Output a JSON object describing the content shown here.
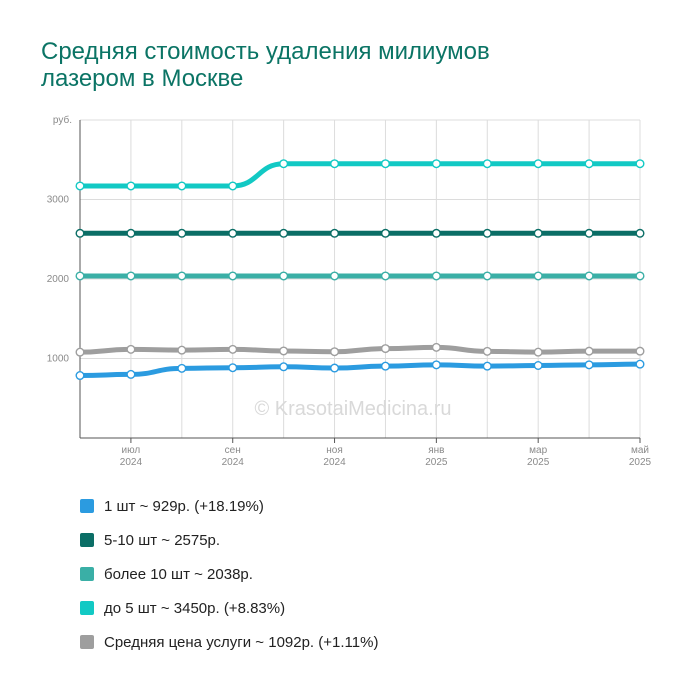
{
  "title": [
    "Средняя стоимость удаления милиумов",
    "лазером в Москве"
  ],
  "watermark": "© KrasotaiMedicina.ru",
  "chart_data": {
    "type": "line",
    "ylabel": "руб.",
    "ylim": [
      0,
      4000
    ],
    "yticks": [
      1000,
      2000,
      3000
    ],
    "x_ticks": [
      {
        "month": "июл",
        "year": "2024"
      },
      {
        "month": "сен",
        "year": "2024"
      },
      {
        "month": "ноя",
        "year": "2024"
      },
      {
        "month": "янв",
        "year": "2025"
      },
      {
        "month": "мар",
        "year": "2025"
      },
      {
        "month": "май",
        "year": "2025"
      }
    ],
    "grid": true,
    "legend_position": "bottom",
    "series": [
      {
        "label": "1 шт ~ 929р. (+18.19%)",
        "color": "#2b9be0",
        "values": [
          786,
          800,
          876,
          884,
          896,
          880,
          904,
          920,
          904,
          912,
          920,
          929
        ]
      },
      {
        "label": "5-10 шт ~ 2575р.",
        "color": "#0b6e66",
        "values": [
          2575,
          2575,
          2575,
          2575,
          2575,
          2575,
          2575,
          2575,
          2575,
          2575,
          2575,
          2575
        ]
      },
      {
        "label": "более 10 шт ~ 2038р.",
        "color": "#3aafa6",
        "values": [
          2038,
          2038,
          2038,
          2038,
          2038,
          2038,
          2038,
          2038,
          2038,
          2038,
          2038,
          2038
        ]
      },
      {
        "label": "до 5 шт ~ 3450р. (+8.83%)",
        "color": "#12c9c4",
        "values": [
          3170,
          3170,
          3170,
          3170,
          3450,
          3450,
          3450,
          3450,
          3450,
          3450,
          3450,
          3450
        ]
      },
      {
        "label": "Средняя цена услуги ~ 1092р. (+1.11%)",
        "color": "#9e9e9e",
        "values": [
          1080,
          1115,
          1105,
          1115,
          1095,
          1085,
          1125,
          1140,
          1090,
          1080,
          1092,
          1092
        ]
      }
    ]
  }
}
